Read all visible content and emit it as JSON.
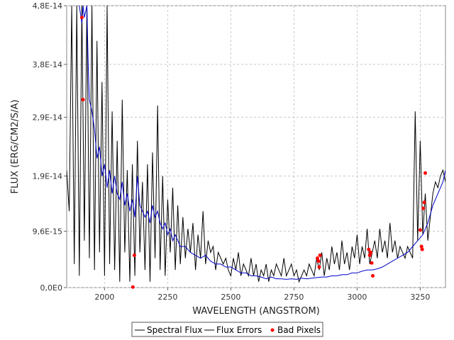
{
  "chart_data": {
    "type": "line",
    "xlabel": "WAVELENGTH (ANGSTROM)",
    "ylabel": "FLUX (ERG/CM2/S/A)",
    "xlim": [
      1850,
      3350
    ],
    "ylim": [
      0,
      4.8e-14
    ],
    "x_ticks": [
      2000,
      2250,
      2500,
      2750,
      3000,
      3250
    ],
    "x_tick_labels": [
      "2000",
      "2250",
      "2500",
      "2750",
      "3000",
      "3250"
    ],
    "y_ticks": [
      0,
      9.6e-15,
      1.9e-14,
      2.9e-14,
      3.8e-14,
      4.8e-14
    ],
    "y_tick_labels": [
      "0,0E0",
      "9,6E-15",
      "1,9E-14",
      "2,9E-14",
      "3,8E-14",
      "4,8E-14"
    ],
    "grid": true,
    "legend_position": "bottom-center",
    "series": [
      {
        "name": "Spectral Flux",
        "color": "#000000",
        "x": [
          1850,
          1860,
          1870,
          1880,
          1890,
          1900,
          1910,
          1920,
          1930,
          1940,
          1950,
          1960,
          1970,
          1980,
          1990,
          2000,
          2010,
          2020,
          2030,
          2040,
          2050,
          2060,
          2070,
          2080,
          2090,
          2100,
          2110,
          2120,
          2130,
          2140,
          2150,
          2160,
          2170,
          2180,
          2190,
          2200,
          2210,
          2220,
          2230,
          2240,
          2250,
          2260,
          2270,
          2280,
          2290,
          2300,
          2310,
          2320,
          2330,
          2340,
          2350,
          2360,
          2370,
          2380,
          2390,
          2400,
          2410,
          2420,
          2430,
          2440,
          2450,
          2460,
          2470,
          2480,
          2490,
          2500,
          2510,
          2520,
          2530,
          2540,
          2550,
          2560,
          2570,
          2580,
          2590,
          2600,
          2610,
          2620,
          2630,
          2640,
          2650,
          2660,
          2670,
          2680,
          2690,
          2700,
          2710,
          2720,
          2730,
          2740,
          2750,
          2760,
          2770,
          2780,
          2790,
          2800,
          2810,
          2820,
          2830,
          2840,
          2850,
          2860,
          2870,
          2880,
          2890,
          2900,
          2910,
          2920,
          2930,
          2940,
          2950,
          2960,
          2970,
          2980,
          2990,
          3000,
          3010,
          3020,
          3030,
          3040,
          3050,
          3060,
          3070,
          3080,
          3090,
          3100,
          3110,
          3120,
          3130,
          3140,
          3150,
          3160,
          3170,
          3180,
          3190,
          3200,
          3210,
          3220,
          3230,
          3240,
          3250,
          3260,
          3270,
          3280,
          3290,
          3300,
          3310,
          3320,
          3330,
          3340,
          3350
        ],
        "y": [
          2e-14,
          1.3e-14,
          4.8e-14,
          4e-15,
          4.8e-14,
          2e-15,
          4.8e-14,
          8e-15,
          4.8e-14,
          5e-15,
          4.8e-14,
          3e-15,
          4.2e-14,
          6e-15,
          3.5e-14,
          2e-15,
          4.8e-14,
          4e-15,
          3e-14,
          3e-15,
          2.5e-14,
          1e-15,
          3.2e-14,
          6e-15,
          2e-14,
          1e-15,
          2.1e-14,
          2e-15,
          2.5e-14,
          6e-15,
          1.8e-14,
          3e-15,
          2.1e-14,
          1e-15,
          2.3e-14,
          5e-15,
          3.1e-14,
          3e-15,
          1.9e-14,
          2e-15,
          1.5e-14,
          6e-15,
          1.7e-14,
          3e-15,
          1.4e-14,
          4e-15,
          1.2e-14,
          5e-15,
          1e-14,
          6e-15,
          1.1e-14,
          3e-15,
          9e-15,
          5e-15,
          1.3e-14,
          4e-15,
          8e-15,
          6e-15,
          7e-15,
          3e-15,
          6e-15,
          5e-15,
          4e-15,
          5e-15,
          3e-15,
          2e-15,
          5e-15,
          3e-15,
          6e-15,
          2e-15,
          4e-15,
          3e-15,
          2e-15,
          5e-15,
          2e-15,
          4e-15,
          1e-15,
          3e-15,
          2e-15,
          4e-15,
          1e-15,
          3e-15,
          2e-15,
          4e-15,
          3e-15,
          2e-15,
          5e-15,
          2e-15,
          3e-15,
          4e-15,
          2e-15,
          3e-15,
          1e-15,
          2e-15,
          3e-15,
          2e-15,
          4e-15,
          3e-15,
          2e-15,
          5e-15,
          3e-15,
          6e-15,
          2e-15,
          5e-15,
          3e-15,
          7e-15,
          4e-15,
          6e-15,
          3e-15,
          8e-15,
          4e-15,
          6e-15,
          3e-15,
          7e-15,
          5e-15,
          9e-15,
          4e-15,
          7e-15,
          5e-15,
          1e-14,
          4e-15,
          6e-15,
          8e-15,
          5e-15,
          1e-14,
          6e-15,
          8e-15,
          5e-15,
          1.1e-14,
          6e-15,
          8e-15,
          5e-15,
          7e-15,
          6e-15,
          5e-15,
          7e-15,
          6e-15,
          5e-15,
          3e-14,
          8e-15,
          2.5e-14,
          9e-15,
          1.6e-14,
          8e-15,
          1.2e-14,
          1.6e-14,
          1.8e-14,
          1.7e-14,
          1.9e-14,
          2e-14,
          1.8e-14
        ]
      },
      {
        "name": "Flux Errors",
        "color": "#0000cc",
        "x": [
          1900,
          1910,
          1915,
          1920,
          1930,
          1935,
          1940,
          1950,
          1960,
          1970,
          1980,
          1990,
          2000,
          2010,
          2020,
          2030,
          2040,
          2050,
          2060,
          2070,
          2080,
          2090,
          2100,
          2110,
          2120,
          2130,
          2140,
          2150,
          2160,
          2170,
          2180,
          2190,
          2200,
          2210,
          2220,
          2230,
          2240,
          2250,
          2260,
          2270,
          2280,
          2300,
          2320,
          2340,
          2360,
          2380,
          2400,
          2420,
          2440,
          2460,
          2480,
          2500,
          2520,
          2540,
          2560,
          2580,
          2600,
          2620,
          2640,
          2660,
          2680,
          2700,
          2720,
          2740,
          2760,
          2780,
          2800,
          2820,
          2840,
          2860,
          2880,
          2900,
          2920,
          2940,
          2960,
          2980,
          3000,
          3020,
          3040,
          3060,
          3080,
          3100,
          3120,
          3140,
          3160,
          3180,
          3200,
          3220,
          3240,
          3260,
          3280,
          3300,
          3320,
          3340,
          3350
        ],
        "y": [
          4.8e-14,
          4.5e-14,
          4.8e-14,
          4.6e-14,
          4.8e-14,
          3.8e-14,
          3.2e-14,
          3e-14,
          2.7e-14,
          2.2e-14,
          2.4e-14,
          1.9e-14,
          2.1e-14,
          1.7e-14,
          2e-14,
          1.6e-14,
          1.9e-14,
          1.6e-14,
          1.5e-14,
          1.8e-14,
          1.4e-14,
          1.6e-14,
          1.3e-14,
          1.5e-14,
          1.2e-14,
          1.9e-14,
          1.4e-14,
          1.3e-14,
          1.2e-14,
          1.3e-14,
          1.1e-14,
          1.4e-14,
          1.2e-14,
          1.3e-14,
          1.1e-14,
          1e-14,
          1.1e-14,
          9e-15,
          1e-14,
          8e-15,
          9e-15,
          7e-15,
          7e-15,
          6e-15,
          5.5e-15,
          5e-15,
          5.5e-15,
          4.5e-15,
          4e-15,
          4e-15,
          3.5e-15,
          3.5e-15,
          3e-15,
          2.5e-15,
          2.5e-15,
          2e-15,
          2e-15,
          1.8e-15,
          1.5e-15,
          1.8e-15,
          1.5e-15,
          1.5e-15,
          1.4e-15,
          1.5e-15,
          1.4e-15,
          1.6e-15,
          1.5e-15,
          1.6e-15,
          1.7e-15,
          1.8e-15,
          1.8e-15,
          2e-15,
          2e-15,
          2.2e-15,
          2.2e-15,
          2.5e-15,
          2.5e-15,
          2.8e-15,
          3e-15,
          3e-15,
          3.2e-15,
          3.5e-15,
          4e-15,
          4.5e-15,
          5e-15,
          5.5e-15,
          6e-15,
          7e-15,
          8e-15,
          9e-15,
          1.1e-14,
          1.4e-14,
          1.6e-14,
          1.8e-14,
          2e-14
        ]
      },
      {
        "name": "Bad Pixels",
        "color": "#ff0000",
        "x": [
          1910,
          1915,
          2118,
          2112,
          2843,
          2847,
          2850,
          2853,
          3046,
          3050,
          3054,
          3058,
          3062,
          3250,
          3255,
          3258,
          3262,
          3266,
          3270
        ],
        "y": [
          4.6e-14,
          3.2e-14,
          5.5e-15,
          1e-16,
          5e-15,
          4.5e-15,
          3.5e-15,
          5.5e-15,
          6.5e-15,
          5.5e-15,
          6e-15,
          4.2e-15,
          2e-15,
          9.8e-15,
          7e-15,
          6.5e-15,
          1.35e-14,
          1.45e-14,
          1.95e-14
        ]
      }
    ]
  }
}
